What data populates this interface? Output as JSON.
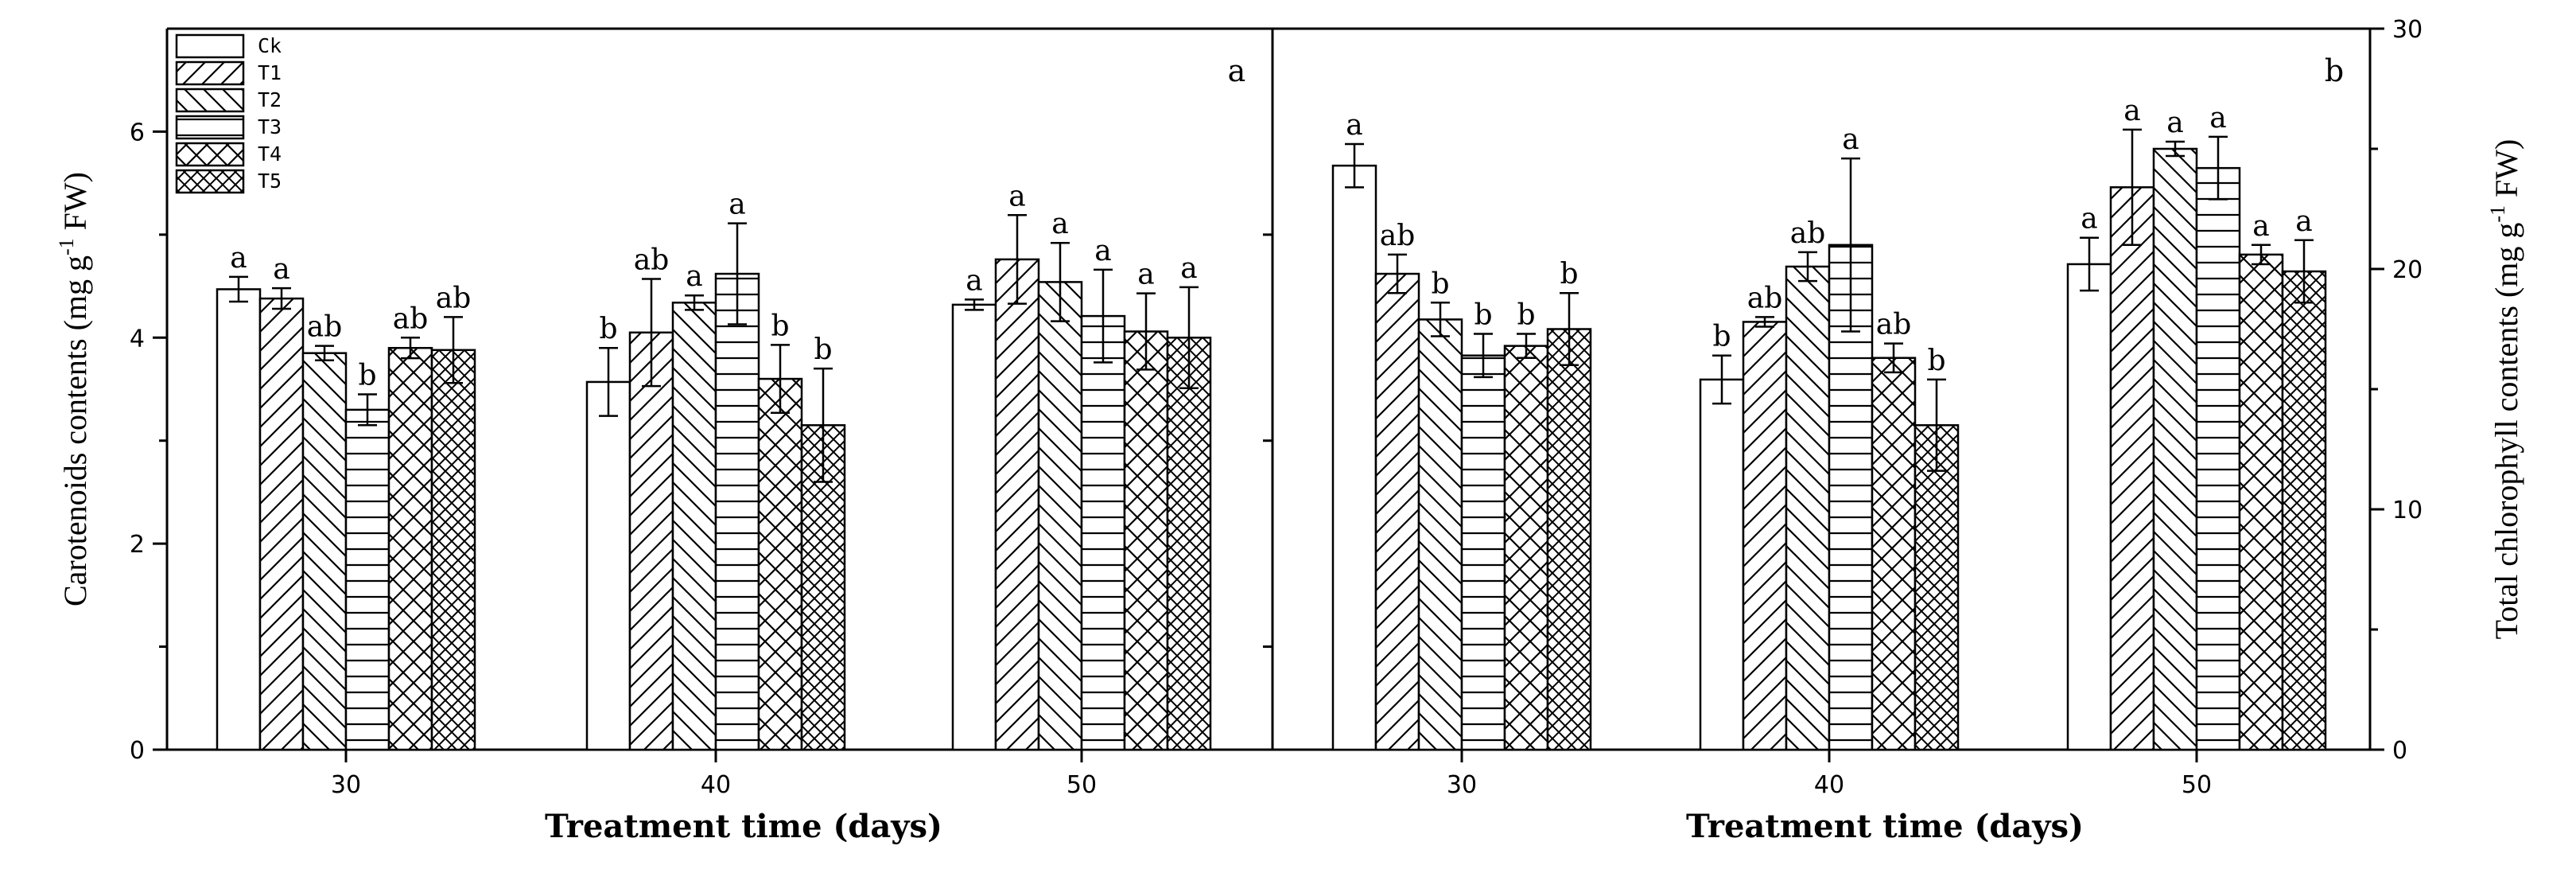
{
  "chart_data": [
    {
      "type": "bar",
      "panel_label": "a",
      "categories": [
        "30",
        "40",
        "50"
      ],
      "xlabel": "Treatment time (days)",
      "ylabel": "Carotenoids contents (mg g",
      "ylabel_sup": "-1",
      "ylabel_end": " FW)",
      "ylim": [
        0,
        7
      ],
      "yticks": [
        0,
        2,
        4,
        6
      ],
      "ytick_labels": [
        "0",
        "2",
        "4",
        "6"
      ],
      "yaxis_side": "left",
      "series": [
        {
          "name": "Ck",
          "pattern": "none",
          "values": [
            4.47,
            3.57,
            4.32
          ],
          "errors": [
            0.12,
            0.33,
            0.05
          ],
          "letters": [
            "a",
            "b",
            "a"
          ]
        },
        {
          "name": "T1",
          "pattern": "diag-right",
          "values": [
            4.38,
            4.05,
            4.76
          ],
          "errors": [
            0.1,
            0.52,
            0.43
          ],
          "letters": [
            "a",
            "ab",
            "a"
          ]
        },
        {
          "name": "T2",
          "pattern": "diag-left",
          "values": [
            3.85,
            4.34,
            4.54
          ],
          "errors": [
            0.07,
            0.07,
            0.38
          ],
          "letters": [
            "ab",
            "a",
            "a"
          ]
        },
        {
          "name": "T3",
          "pattern": "horizontal",
          "values": [
            3.3,
            4.62,
            4.21
          ],
          "errors": [
            0.15,
            0.49,
            0.45
          ],
          "letters": [
            "b",
            "a",
            "a"
          ]
        },
        {
          "name": "T4",
          "pattern": "crosshatch",
          "values": [
            3.9,
            3.6,
            4.06
          ],
          "errors": [
            0.1,
            0.33,
            0.37
          ],
          "letters": [
            "ab",
            "b",
            "a"
          ]
        },
        {
          "name": "T5",
          "pattern": "crosshatch-dense",
          "values": [
            3.88,
            3.15,
            4.0
          ],
          "errors": [
            0.32,
            0.55,
            0.49
          ],
          "letters": [
            "ab",
            "b",
            "a"
          ]
        }
      ]
    },
    {
      "type": "bar",
      "panel_label": "b",
      "categories": [
        "30",
        "40",
        "50"
      ],
      "xlabel": "Treatment time (days)",
      "ylabel": "Total chlorophyll contents (mg g",
      "ylabel_sup": "-1",
      "ylabel_end": " FW)",
      "ylim": [
        0,
        30
      ],
      "yticks": [
        0,
        10,
        20,
        30
      ],
      "ytick_labels": [
        "0",
        "10",
        "20",
        "30"
      ],
      "yaxis_side": "right",
      "series": [
        {
          "name": "Ck",
          "pattern": "none",
          "values": [
            24.3,
            15.4,
            20.2
          ],
          "errors": [
            0.9,
            1.0,
            1.1
          ],
          "letters": [
            "a",
            "b",
            "a"
          ]
        },
        {
          "name": "T1",
          "pattern": "diag-right",
          "values": [
            19.8,
            17.8,
            23.4
          ],
          "errors": [
            0.8,
            0.2,
            2.4
          ],
          "letters": [
            "ab",
            "ab",
            "a"
          ]
        },
        {
          "name": "T2",
          "pattern": "diag-left",
          "values": [
            17.9,
            20.1,
            25.0
          ],
          "errors": [
            0.7,
            0.6,
            0.3
          ],
          "letters": [
            "b",
            "ab",
            "a"
          ]
        },
        {
          "name": "T3",
          "pattern": "horizontal",
          "values": [
            16.4,
            21.0,
            24.2
          ],
          "errors": [
            0.9,
            3.6,
            1.3
          ],
          "letters": [
            "b",
            "a",
            "a"
          ]
        },
        {
          "name": "T4",
          "pattern": "crosshatch",
          "values": [
            16.8,
            16.3,
            20.6
          ],
          "errors": [
            0.5,
            0.6,
            0.4
          ],
          "letters": [
            "b",
            "ab",
            "a"
          ]
        },
        {
          "name": "T5",
          "pattern": "crosshatch-dense",
          "values": [
            17.5,
            13.5,
            19.9
          ],
          "errors": [
            1.5,
            1.9,
            1.3
          ],
          "letters": [
            "b",
            "b",
            "a"
          ]
        }
      ]
    }
  ],
  "legend": {
    "placement": "top-left",
    "entries": [
      "Ck",
      "T1",
      "T2",
      "T3",
      "T4",
      "T5"
    ]
  }
}
